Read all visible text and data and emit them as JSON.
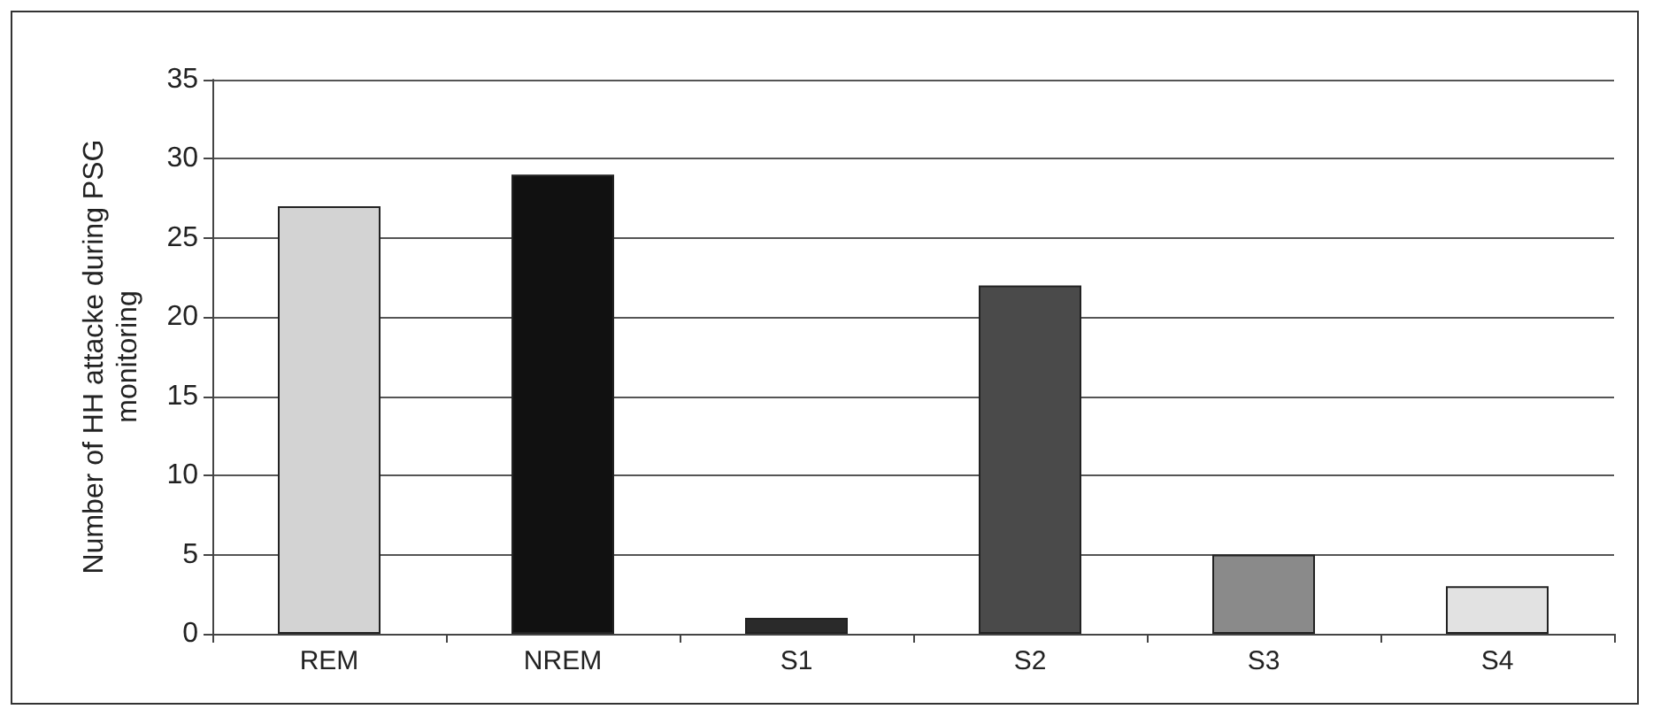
{
  "chart_data": {
    "type": "bar",
    "ylabel": "Number of HH attacke during PSG monitoring",
    "categories": [
      "REM",
      "NREM",
      "S1",
      "S2",
      "S3",
      "S4"
    ],
    "values": [
      27,
      29,
      1,
      22,
      5,
      3
    ],
    "colors": [
      "#d3d3d3",
      "#111111",
      "#2a2a2a",
      "#4a4a4a",
      "#8a8a8a",
      "#e2e2e2"
    ],
    "ylim": [
      0,
      35
    ],
    "yticks": [
      0,
      5,
      10,
      15,
      20,
      25,
      30,
      35
    ],
    "grid": "y"
  }
}
